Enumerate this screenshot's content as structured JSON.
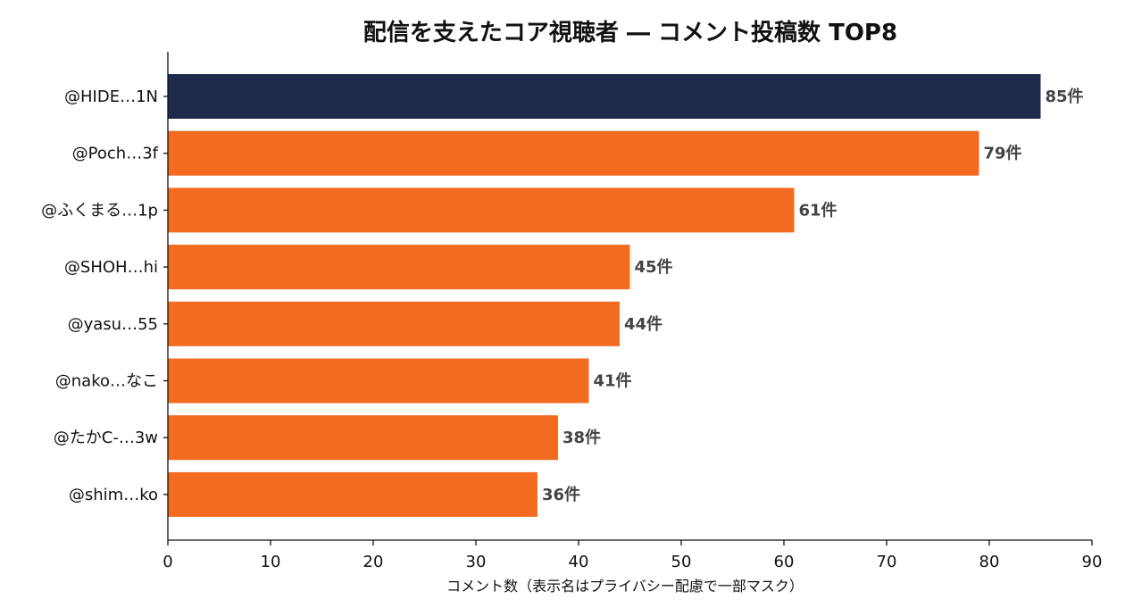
{
  "chart_data": {
    "type": "bar",
    "orientation": "horizontal",
    "title": "配信を支えたコア視聴者 ― コメント投稿数 TOP8",
    "xlabel": "コメント数（表示名はプライバシー配慮で一部マスク）",
    "ylabel": "",
    "categories": [
      "@HIDE…1N",
      "@Poch…3f",
      "@ふくまる…1p",
      "@SHOH…hi",
      "@yasu…55",
      "@nako…なこ",
      "@たかC-…3w",
      "@shim…ko"
    ],
    "values": [
      85,
      79,
      61,
      45,
      44,
      41,
      38,
      36
    ],
    "value_labels": [
      "85件",
      "79件",
      "61件",
      "45件",
      "44件",
      "41件",
      "38件",
      "36件"
    ],
    "xlim": [
      0,
      90
    ],
    "xticks": [
      "0",
      "10",
      "20",
      "30",
      "40",
      "50",
      "60",
      "70",
      "80",
      "90"
    ],
    "grid": false,
    "colors": {
      "highlight": "#1e2a4a",
      "bar": "#f26b21",
      "label": "#444444"
    }
  }
}
